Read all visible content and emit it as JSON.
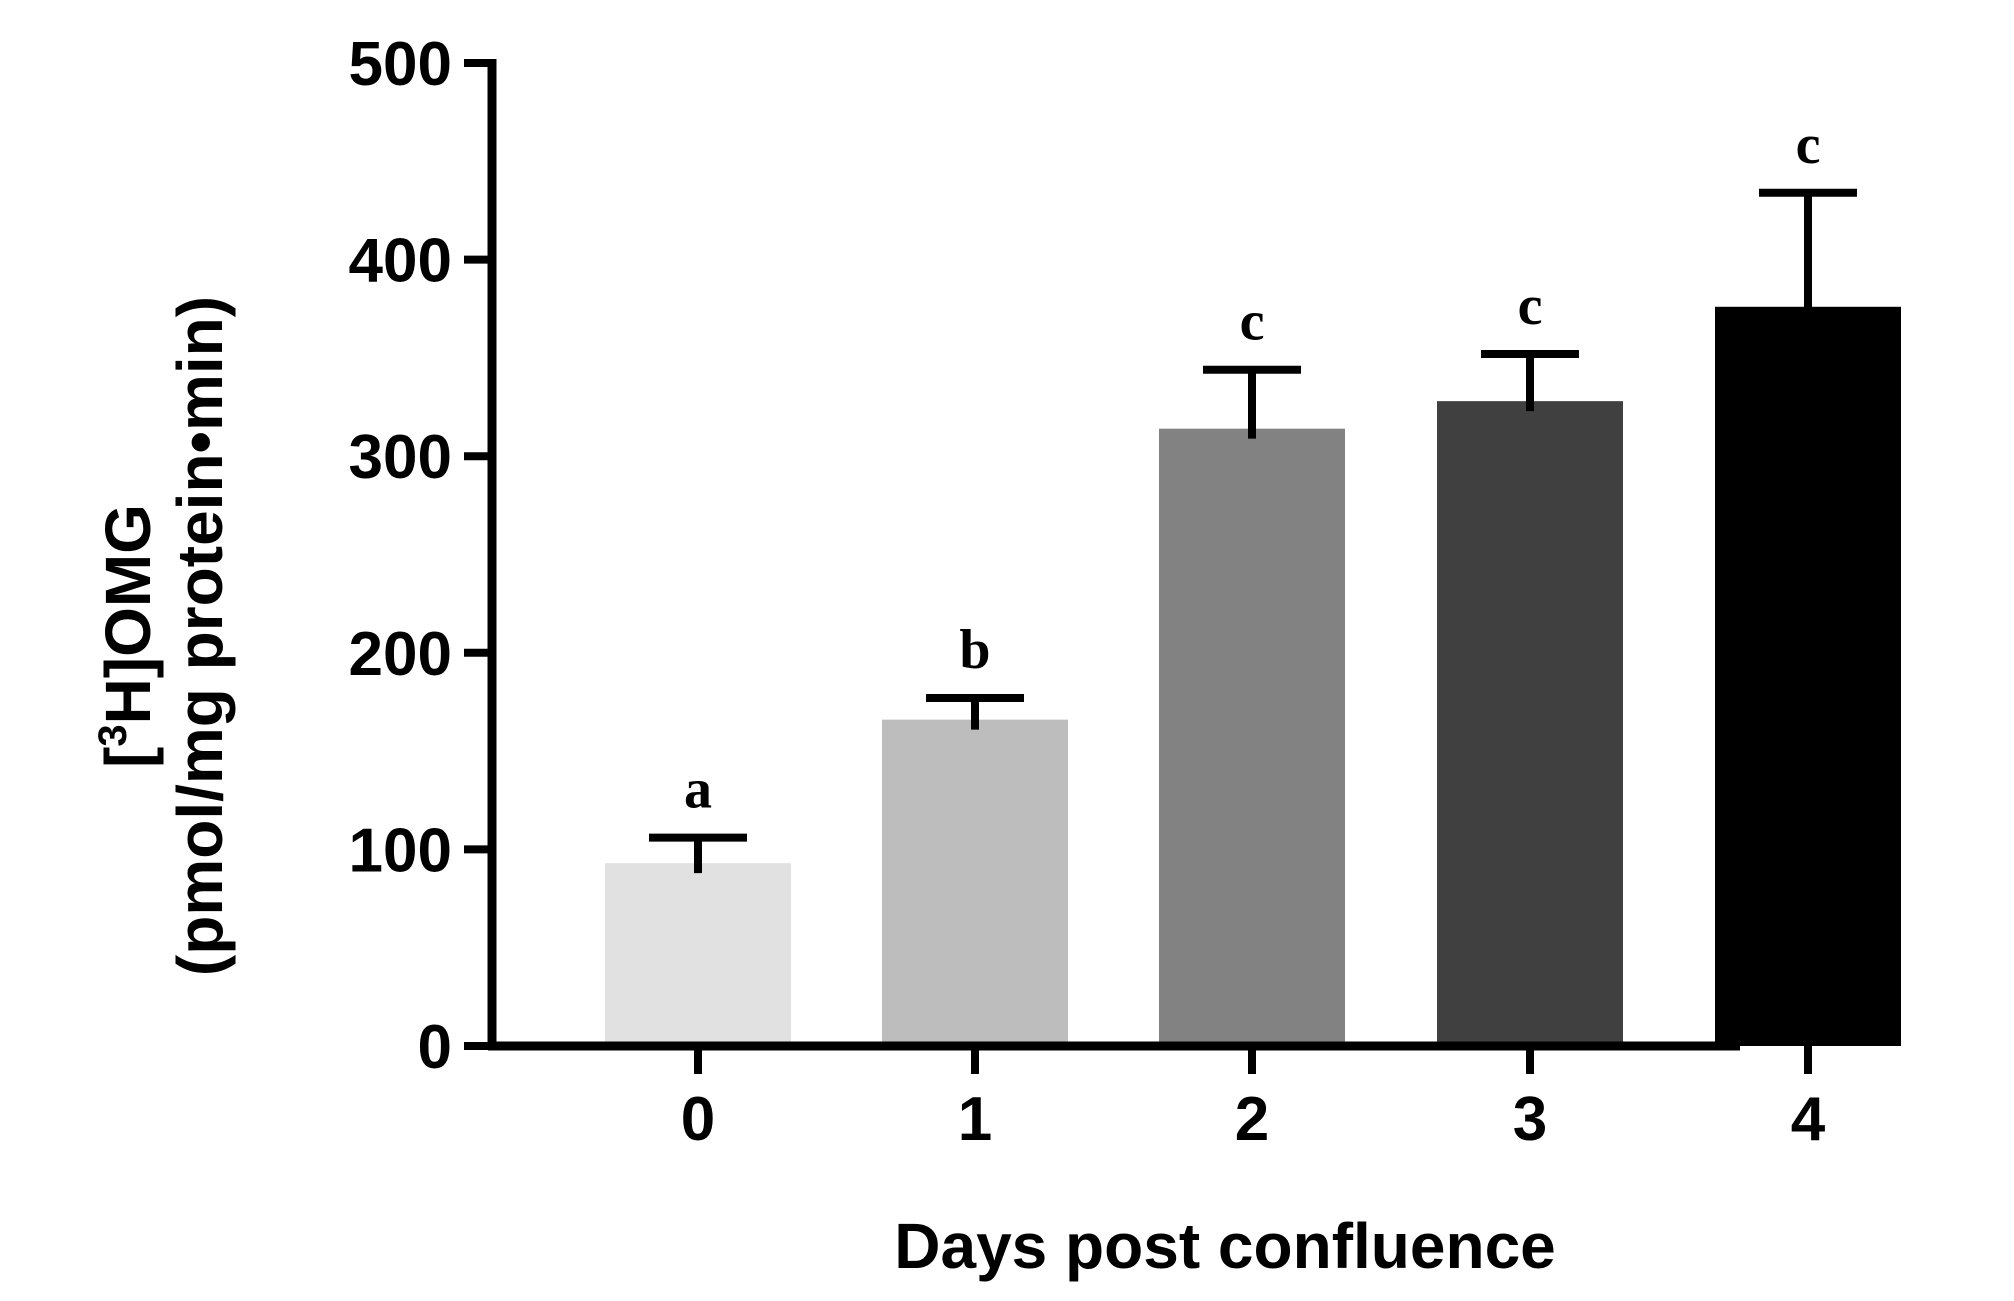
{
  "chart_data": {
    "type": "bar",
    "categories": [
      "0",
      "1",
      "2",
      "3",
      "4"
    ],
    "values": [
      93,
      166,
      314,
      328,
      376
    ],
    "errors": [
      13,
      11,
      30,
      24,
      58
    ],
    "significance": [
      "a",
      "b",
      "c",
      "c",
      "c"
    ],
    "colors": [
      "#e1e1e1",
      "#bdbdbd",
      "#828282",
      "#404040",
      "#000000"
    ],
    "xlabel": "Days post confluence",
    "ylabel": {
      "bracket_open": "[",
      "superscript": "3",
      "line1_rest": "H]OMG",
      "line2": "(pmol/mg protein•min)"
    },
    "ylim": [
      0,
      500
    ],
    "yticks": [
      0,
      100,
      200,
      300,
      400,
      500
    ],
    "grid": false,
    "legend": "none"
  }
}
